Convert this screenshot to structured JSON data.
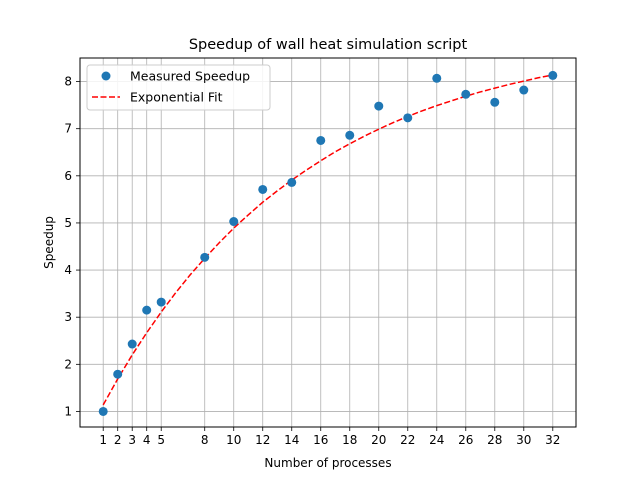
{
  "chart_data": {
    "type": "scatter",
    "title": "Speedup of wall heat simulation script",
    "xlabel": "Number of processes",
    "ylabel": "Speedup",
    "xlim": [
      -0.6,
      33.6
    ],
    "ylim": [
      0.67,
      8.5
    ],
    "xticks": [
      1,
      2,
      3,
      4,
      5,
      8,
      10,
      12,
      14,
      16,
      18,
      20,
      22,
      24,
      26,
      28,
      30,
      32
    ],
    "yticks": [
      1,
      2,
      3,
      4,
      5,
      6,
      7,
      8
    ],
    "grid": true,
    "legend_position": "top-left",
    "series": [
      {
        "name": "Measured Speedup",
        "kind": "markers",
        "color": "#1f77b4",
        "x": [
          1,
          2,
          3,
          4,
          5,
          8,
          10,
          12,
          14,
          16,
          18,
          20,
          22,
          24,
          26,
          28,
          30,
          32
        ],
        "y": [
          1.0,
          1.79,
          2.43,
          3.15,
          3.32,
          4.27,
          5.03,
          5.71,
          5.86,
          6.75,
          6.86,
          7.48,
          7.23,
          8.07,
          7.73,
          7.56,
          7.82,
          8.13
        ]
      },
      {
        "name": "Exponential Fit",
        "kind": "dashed-line",
        "color": "#ff0000",
        "x": [
          1,
          2,
          3,
          4,
          5,
          6,
          7,
          8,
          9,
          10,
          11,
          12,
          13,
          14,
          15,
          16,
          17,
          18,
          19,
          20,
          21,
          22,
          23,
          24,
          25,
          26,
          27,
          28,
          29,
          30,
          31,
          32
        ],
        "y": [
          1.14,
          1.69,
          2.2,
          2.67,
          3.11,
          3.52,
          3.9,
          4.25,
          4.58,
          4.89,
          5.17,
          5.44,
          5.68,
          5.91,
          6.12,
          6.32,
          6.51,
          6.68,
          6.84,
          6.99,
          7.13,
          7.26,
          7.38,
          7.49,
          7.59,
          7.69,
          7.78,
          7.86,
          7.94,
          8.01,
          8.08,
          8.14
        ]
      }
    ]
  }
}
